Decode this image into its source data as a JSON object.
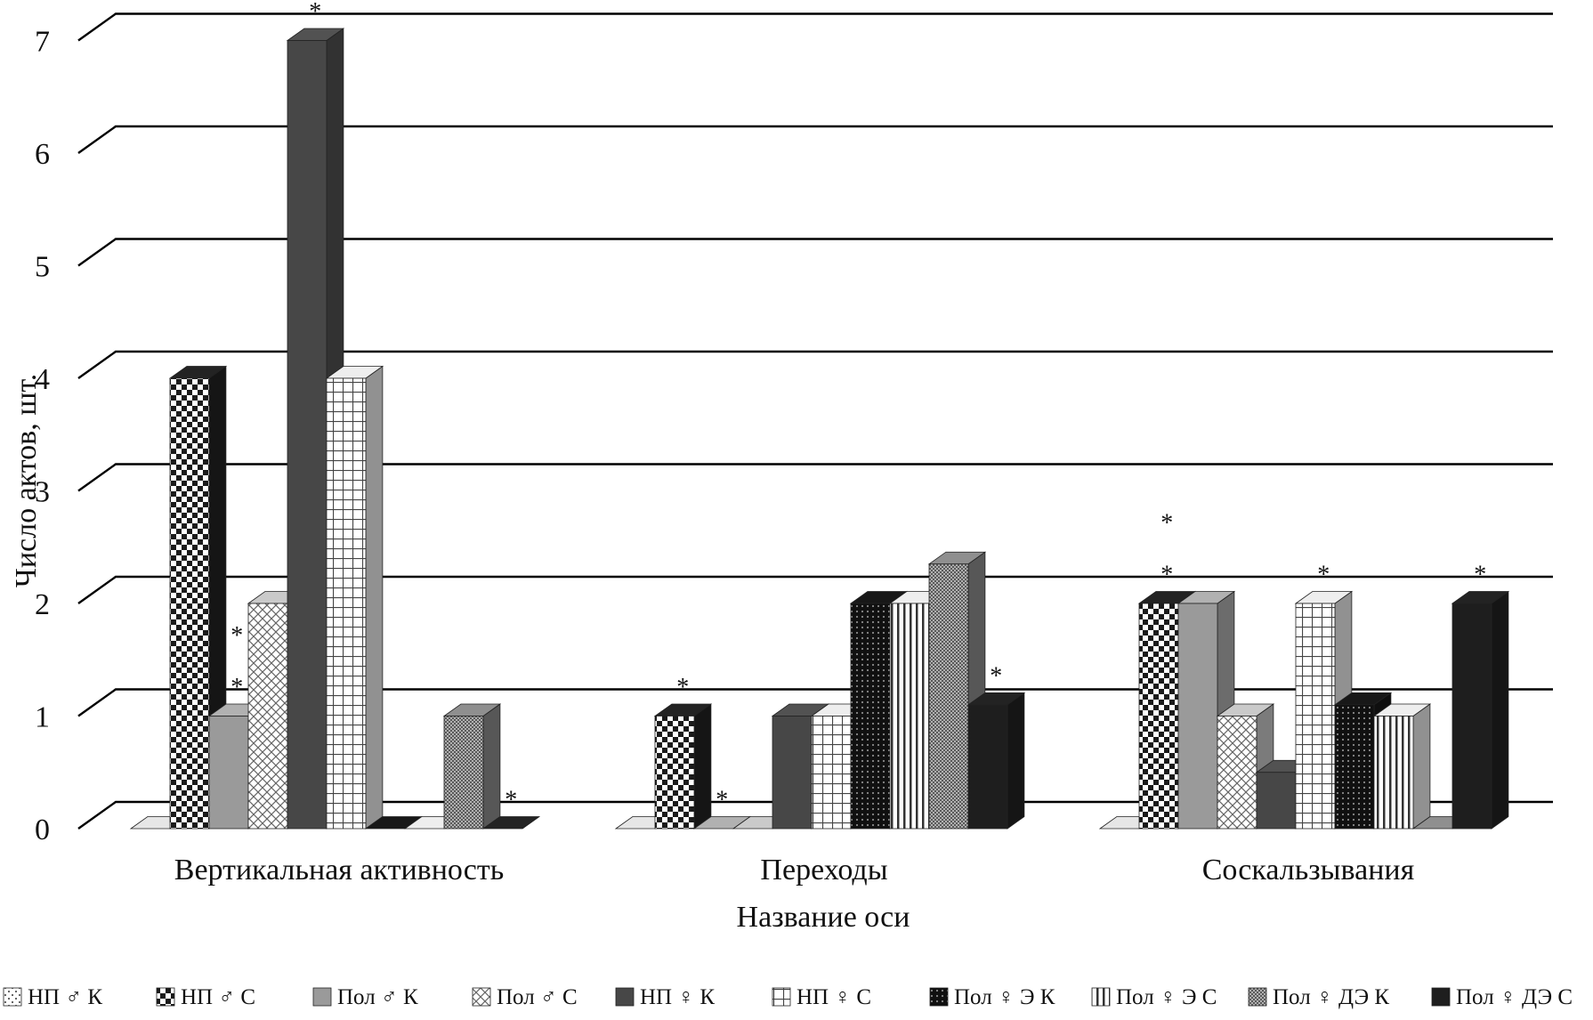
{
  "chart_data": {
    "type": "bar",
    "subtype": "3d-clustered-column",
    "xlabel": "Название оси",
    "ylabel": "Число актов, шт.",
    "ylim": [
      0,
      7
    ],
    "yticks": [
      "0",
      "1",
      "2",
      "3",
      "4",
      "5",
      "6",
      "7"
    ],
    "grid": true,
    "legend_position": "bottom",
    "categories": [
      "Вертикальная активность",
      "Переходы",
      "Соскальзывания"
    ],
    "series": [
      {
        "name": "НП ♂ К",
        "values": [
          0,
          0,
          0
        ],
        "pattern": "dots",
        "color": "#c8c8c8",
        "stars": [
          0,
          0,
          0
        ]
      },
      {
        "name": "НП ♂ С",
        "values": [
          4,
          1,
          2
        ],
        "pattern": "checker",
        "color": "#1e1e1e",
        "stars": [
          0,
          1,
          2
        ]
      },
      {
        "name": "Пол ♂ К",
        "values": [
          1,
          0,
          2
        ],
        "pattern": "solid",
        "color": "#9a9a9a",
        "stars": [
          2,
          1,
          0
        ]
      },
      {
        "name": "Пол ♂ С",
        "values": [
          2,
          0,
          1
        ],
        "pattern": "crosshatch",
        "color": "#b0b0b0",
        "stars": [
          0,
          0,
          0
        ]
      },
      {
        "name": "НП ♀ К",
        "values": [
          7,
          1,
          0.5
        ],
        "pattern": "solid",
        "color": "#474747",
        "stars": [
          1,
          0,
          0
        ]
      },
      {
        "name": "НП ♀ С",
        "values": [
          4,
          1,
          2
        ],
        "pattern": "grid",
        "color": "#ffffff",
        "stars": [
          0,
          0,
          1
        ]
      },
      {
        "name": "Пол ♀ Э К",
        "values": [
          0,
          2,
          1.1
        ],
        "pattern": "darkdots",
        "color": "#151515",
        "stars": [
          0,
          0,
          0
        ]
      },
      {
        "name": "Пол ♀ Э С",
        "values": [
          0,
          2,
          1
        ],
        "pattern": "vstripes",
        "color": "#ffffff",
        "stars": [
          0,
          0,
          0
        ]
      },
      {
        "name": "Пол ♀ ДЭ К",
        "values": [
          1,
          2.35,
          0
        ],
        "pattern": "fine",
        "color": "#7c7c7c",
        "stars": [
          0,
          0,
          0
        ]
      },
      {
        "name": "Пол ♀ ДЭ С",
        "values": [
          0,
          1.1,
          2
        ],
        "pattern": "solid",
        "color": "#1e1e1e",
        "stars": [
          1,
          1,
          1
        ]
      }
    ],
    "annotation_mark": "*"
  }
}
